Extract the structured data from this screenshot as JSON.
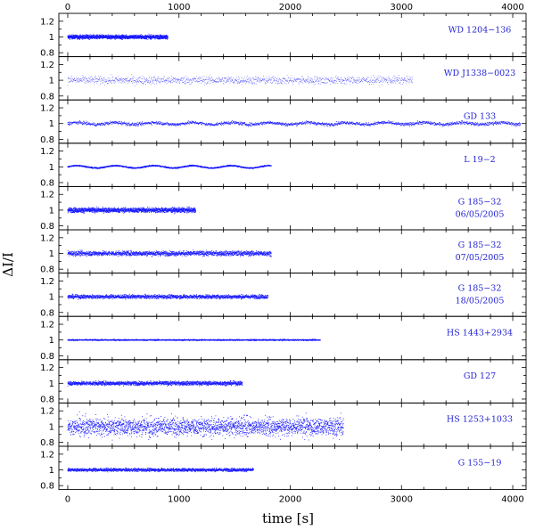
{
  "chart_data": {
    "type": "scatter",
    "xlabel": "time [s]",
    "ylabel": "ΔI/I",
    "xlim": [
      -80,
      4120
    ],
    "ylim": [
      0.75,
      1.3
    ],
    "x_ticks": [
      0,
      1000,
      2000,
      3000,
      4000
    ],
    "y_ticks": [
      0.8,
      1,
      1.2
    ],
    "y_tick_labels": [
      "0.8",
      "1",
      "1.2"
    ],
    "x_tick_labels": [
      "0",
      "1000",
      "2000",
      "3000",
      "4000"
    ],
    "marker_color": "#1a1aff",
    "label_color": "#1f1fd6",
    "panels": [
      {
        "label": "WD 1204−136",
        "x_start": 0,
        "x_end": 900,
        "mean": 1.0,
        "amplitude": 0.025,
        "oscillation": 0,
        "style": "dense"
      },
      {
        "label": "WD J1338−0023",
        "x_start": 0,
        "x_end": 3100,
        "mean": 1.0,
        "amplitude": 0.05,
        "oscillation": 0,
        "style": "sparse"
      },
      {
        "label": "GD 133",
        "x_start": 0,
        "x_end": 4070,
        "mean": 1.0,
        "amplitude": 0.02,
        "oscillation": 0.012,
        "style": "dense"
      },
      {
        "label": "L 19−2",
        "x_start": 0,
        "x_end": 1830,
        "mean": 1.0,
        "amplitude": 0.008,
        "oscillation": 0.015,
        "style": "dense"
      },
      {
        "label": "G 185−32",
        "date": "06/05/2005",
        "x_start": 0,
        "x_end": 1150,
        "mean": 1.0,
        "amplitude": 0.03,
        "oscillation": 0,
        "style": "dense"
      },
      {
        "label": "G 185−32",
        "date": "07/05/2005",
        "x_start": 0,
        "x_end": 1830,
        "mean": 1.0,
        "amplitude": 0.03,
        "oscillation": 0,
        "style": "dense"
      },
      {
        "label": "G 185−32",
        "date": "18/05/2005",
        "x_start": 0,
        "x_end": 1800,
        "mean": 1.0,
        "amplitude": 0.025,
        "oscillation": 0,
        "style": "dense"
      },
      {
        "label": "HS 1443+2934",
        "x_start": 0,
        "x_end": 2270,
        "mean": 1.0,
        "amplitude": 0.008,
        "oscillation": 0,
        "style": "dense"
      },
      {
        "label": "GD 127",
        "x_start": 0,
        "x_end": 1570,
        "mean": 1.0,
        "amplitude": 0.025,
        "oscillation": 0,
        "style": "dense"
      },
      {
        "label": "HS 1253+1033",
        "x_start": 0,
        "x_end": 2480,
        "mean": 1.0,
        "amplitude": 0.1,
        "oscillation": 0,
        "style": "noisy"
      },
      {
        "label": "G 155−19",
        "x_start": 0,
        "x_end": 1670,
        "mean": 1.0,
        "amplitude": 0.02,
        "oscillation": 0,
        "style": "dense"
      }
    ]
  }
}
